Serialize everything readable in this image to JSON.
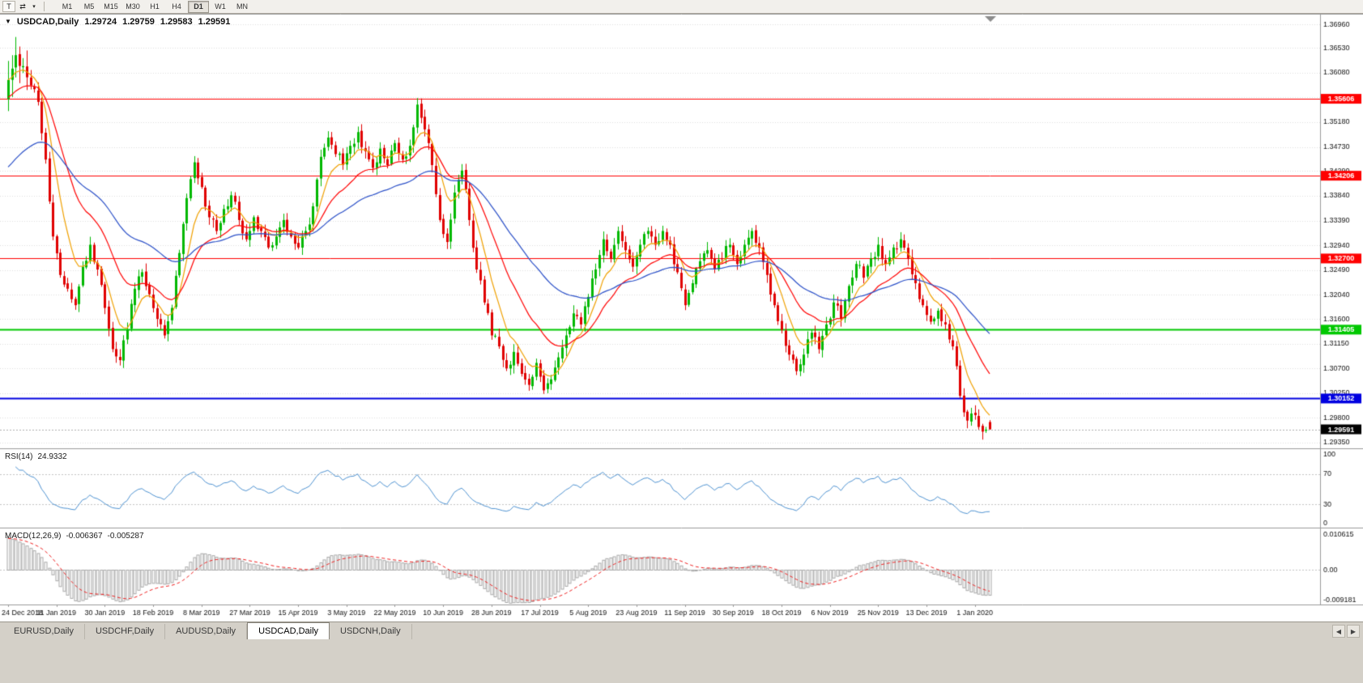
{
  "toolbar": {
    "chart_tool_label": "T",
    "cursor_icon": "⇄",
    "dropdown_icon": "▾",
    "timeframes": [
      "M1",
      "M5",
      "M15",
      "M30",
      "H1",
      "H4",
      "D1",
      "W1",
      "MN"
    ],
    "active_timeframe": "D1"
  },
  "chart": {
    "collapse_icon": "▼",
    "title_symbol": "USDCAD,Daily",
    "quote_open": "1.29724",
    "quote_high": "1.29759",
    "quote_low": "1.29583",
    "quote_close": "1.29591",
    "y_axis_labels": [
      "1.36960",
      "1.36530",
      "1.36080",
      "1.35630",
      "1.35180",
      "1.34730",
      "1.34290",
      "1.33840",
      "1.33390",
      "1.32940",
      "1.32490",
      "1.32040",
      "1.31600",
      "1.31150",
      "1.30700",
      "1.30250",
      "1.29800",
      "1.29350"
    ],
    "price_top": 1.3708,
    "price_bottom": 1.2926,
    "current_price": 1.29591,
    "current_price_label": "1.29591"
  },
  "rsi_panel": {
    "name": "RSI(14)",
    "value": "24.9332",
    "axis_labels": [
      "100",
      "70",
      "30",
      "0"
    ],
    "level_lines": [
      70,
      30
    ],
    "line_color": "#4f93d2"
  },
  "macd_panel": {
    "name": "MACD(12,26,9)",
    "macd_value": "-0.006367",
    "signal_value": "-0.005287",
    "axis_top_label": "0.010615",
    "axis_zero_label": "0.00",
    "axis_bottom_label": "-0.009181",
    "axis_top": 0.010615,
    "axis_bottom": -0.009181,
    "histogram_color": "#a8a8a8",
    "signal_color": "#f02020"
  },
  "tabs": [
    "EURUSD,Daily",
    "USDCHF,Daily",
    "AUDUSD,Daily",
    "USDCAD,Daily",
    "USDCNH,Daily"
  ],
  "active_tab": "USDCAD,Daily",
  "tabbar": {
    "left_arrow": "◀",
    "right_arrow": "▶"
  },
  "chart_data": {
    "type": "candlestick",
    "symbol": "USDCAD",
    "timeframe": "Daily",
    "x_labels": [
      "24 Dec 2018",
      "11 Jan 2019",
      "30 Jan 2019",
      "18 Feb 2019",
      "8 Mar 2019",
      "27 Mar 2019",
      "15 Apr 2019",
      "3 May 2019",
      "22 May 2019",
      "10 Jun 2019",
      "28 Jun 2019",
      "17 Jul 2019",
      "5 Aug 2019",
      "23 Aug 2019",
      "11 Sep 2019",
      "30 Sep 2019",
      "18 Oct 2019",
      "6 Nov 2019",
      "25 Nov 2019",
      "13 Dec 2019",
      "1 Jan 2020"
    ],
    "candles_per_x_label": 13,
    "keypoint_step": 2,
    "close_keypoints": [
      1.3595,
      1.364,
      1.362,
      1.3585,
      1.3555,
      1.345,
      1.331,
      1.324,
      1.3215,
      1.3185,
      1.3255,
      1.3295,
      1.325,
      1.318,
      1.3105,
      1.3085,
      1.314,
      1.3215,
      1.3245,
      1.3205,
      1.316,
      1.313,
      1.318,
      1.328,
      1.338,
      1.3445,
      1.34,
      1.3345,
      1.332,
      1.336,
      1.3385,
      1.334,
      1.3305,
      1.3345,
      1.332,
      1.329,
      1.331,
      1.334,
      1.331,
      1.329,
      1.332,
      1.3365,
      1.3455,
      1.349,
      1.346,
      1.344,
      1.3475,
      1.35,
      1.3465,
      1.3435,
      1.347,
      1.344,
      1.348,
      1.345,
      1.3475,
      1.355,
      1.3505,
      1.344,
      1.334,
      1.33,
      1.339,
      1.343,
      1.334,
      1.325,
      1.319,
      1.313,
      1.311,
      1.307,
      1.31,
      1.306,
      1.304,
      1.308,
      1.303,
      1.305,
      1.309,
      1.313,
      1.317,
      1.315,
      1.32,
      1.325,
      1.3305,
      1.327,
      1.332,
      1.3285,
      1.3255,
      1.3295,
      1.332,
      1.3295,
      1.332,
      1.3295,
      1.3245,
      1.3185,
      1.3225,
      1.3265,
      1.3285,
      1.325,
      1.327,
      1.3295,
      1.326,
      1.3295,
      1.332,
      1.329,
      1.324,
      1.3185,
      1.314,
      1.3095,
      1.3065,
      1.3095,
      1.3135,
      1.3105,
      1.315,
      1.319,
      1.316,
      1.322,
      1.326,
      1.3235,
      1.327,
      1.3295,
      1.326,
      1.329,
      1.3305,
      1.327,
      1.3225,
      1.3185,
      1.3155,
      1.3175,
      1.315,
      1.311,
      1.302,
      1.2975,
      1.2985,
      1.2955,
      1.29591
    ],
    "last_ohlc": {
      "open": 1.29724,
      "high": 1.29759,
      "low": 1.29583,
      "close": 1.29591
    },
    "ylim": [
      1.2926,
      1.3708
    ],
    "bull_color": "#00b800",
    "bear_color": "#e00000",
    "moving_averages": [
      {
        "period": 8,
        "color": "#f0a000"
      },
      {
        "period": 21,
        "color": "#ff0000"
      },
      {
        "period": 50,
        "color": "#2b50c8"
      }
    ],
    "levels": [
      {
        "value": 1.35606,
        "label": "1.35606",
        "color": "#ff0000",
        "width": 1
      },
      {
        "value": 1.34206,
        "label": "1.34206",
        "color": "#ff0000",
        "width": 1
      },
      {
        "value": 1.327,
        "label": "1.32700",
        "color": "#ff0000",
        "width": 1
      },
      {
        "value": 1.31405,
        "label": "1.31405",
        "color": "#00c800",
        "width": 2
      },
      {
        "value": 1.30152,
        "label": "1.30152",
        "color": "#0000e0",
        "width": 2
      }
    ],
    "indicators": [
      {
        "type": "RSI",
        "period": 14,
        "current": 24.9332,
        "range": [
          0,
          100
        ],
        "levels": [
          70,
          30
        ]
      },
      {
        "type": "MACD",
        "fast": 12,
        "slow": 26,
        "signal": 9,
        "current_macd": -0.006367,
        "current_signal": -0.005287,
        "range": [
          -0.009181,
          0.010615
        ]
      }
    ]
  }
}
